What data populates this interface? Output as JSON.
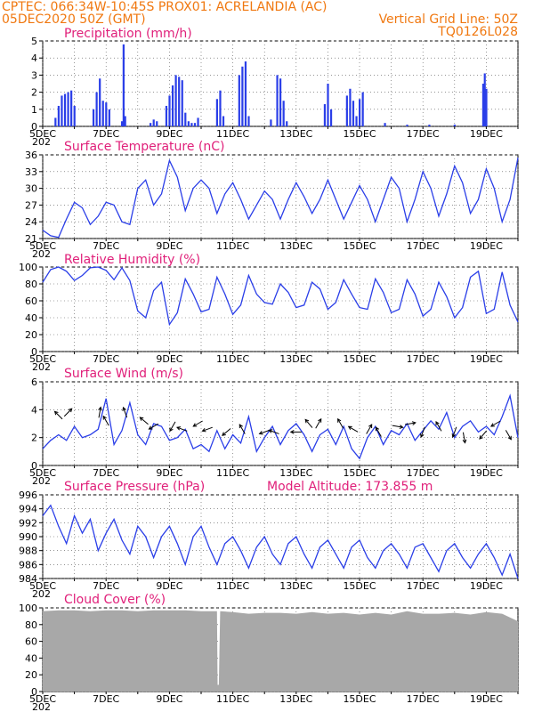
{
  "header": {
    "line1_left": "CPTEC:   066:34W-10:45S   PROX01: ACRELANDIA (AC)",
    "line2_left": "05DEC2020 50Z (GMT)",
    "line2_right": "Vertical Grid Line: 50Z",
    "line3_right": "TQ0126L028",
    "model_altitude": "Model Altitude: 173.855  m"
  },
  "colors": {
    "header": "#f07810",
    "title": "#e0207a",
    "series": "#2a3ee8",
    "cloud": "#a8a8a8",
    "grid": "#000000"
  },
  "x_axis": {
    "day_start": 5,
    "day_end": 20,
    "labels": [
      "5DEC",
      "7DEC",
      "9DEC",
      "11DEC",
      "13DEC",
      "15DEC",
      "17DEC",
      "19DEC"
    ],
    "label_days": [
      5,
      7,
      9,
      11,
      13,
      15,
      17,
      19
    ],
    "year_stub": "202"
  },
  "chart_data": [
    {
      "type": "bar",
      "title": "Precipitation  (mm/h)",
      "ylim": [
        0,
        5
      ],
      "yticks": [
        0,
        1,
        2,
        3,
        4,
        5
      ],
      "x": [
        5.4,
        5.5,
        5.6,
        5.7,
        5.8,
        5.9,
        6.0,
        6.6,
        6.7,
        6.8,
        6.9,
        7.0,
        7.1,
        7.5,
        7.55,
        7.6,
        8.4,
        8.5,
        8.6,
        8.9,
        9.0,
        9.1,
        9.2,
        9.3,
        9.4,
        9.5,
        9.6,
        9.7,
        9.8,
        9.9,
        10.5,
        10.6,
        10.7,
        11.2,
        11.3,
        11.4,
        11.5,
        12.2,
        12.4,
        12.5,
        12.6,
        12.7,
        13.9,
        14.0,
        14.1,
        14.6,
        14.7,
        14.8,
        14.9,
        15.0,
        15.1,
        15.8,
        16.5,
        17.2,
        18.0,
        18.9,
        18.95,
        19.0
      ],
      "values": [
        0.5,
        1.2,
        1.8,
        1.9,
        2.0,
        2.1,
        1.2,
        1.0,
        2.0,
        2.8,
        1.5,
        1.4,
        1.0,
        0.3,
        4.8,
        0.6,
        0.2,
        0.4,
        0.3,
        1.2,
        1.8,
        2.4,
        3.0,
        2.9,
        2.7,
        0.8,
        0.3,
        0.2,
        0.2,
        0.5,
        1.6,
        2.1,
        0.6,
        3.0,
        3.5,
        3.8,
        0.6,
        0.4,
        3.0,
        2.8,
        1.5,
        0.3,
        1.3,
        2.5,
        1.0,
        1.8,
        2.2,
        1.5,
        0.6,
        1.6,
        2.0,
        0.2,
        0.1,
        0.1,
        0.1,
        2.5,
        3.1,
        2.2
      ]
    },
    {
      "type": "line",
      "title": "Surface Temperature (nC)",
      "ylim": [
        21,
        36
      ],
      "yticks": [
        21,
        24,
        27,
        30,
        33,
        36
      ],
      "x": [
        5.0,
        5.25,
        5.5,
        5.75,
        6.0,
        6.25,
        6.5,
        6.75,
        7.0,
        7.25,
        7.5,
        7.75,
        8.0,
        8.25,
        8.5,
        8.75,
        9.0,
        9.25,
        9.5,
        9.75,
        10.0,
        10.25,
        10.5,
        10.75,
        11.0,
        11.25,
        11.5,
        11.75,
        12.0,
        12.25,
        12.5,
        12.75,
        13.0,
        13.25,
        13.5,
        13.75,
        14.0,
        14.25,
        14.5,
        14.75,
        15.0,
        15.25,
        15.5,
        15.75,
        16.0,
        16.25,
        16.5,
        16.75,
        17.0,
        17.25,
        17.5,
        17.75,
        18.0,
        18.25,
        18.5,
        18.75,
        19.0,
        19.25,
        19.5,
        19.75,
        20.0
      ],
      "values": [
        22.5,
        21.5,
        21.2,
        24.5,
        27.5,
        26.5,
        23.5,
        25.0,
        27.5,
        27.0,
        24.0,
        23.5,
        30.0,
        31.5,
        27.0,
        29.0,
        35.0,
        32.0,
        26.0,
        30.0,
        31.5,
        30.0,
        25.5,
        29.0,
        31.0,
        28.0,
        24.5,
        27.0,
        29.5,
        28.0,
        24.5,
        28.0,
        31.0,
        28.5,
        25.5,
        28.0,
        31.5,
        28.0,
        24.5,
        27.5,
        30.5,
        28.0,
        24.0,
        28.0,
        32.0,
        30.0,
        24.0,
        28.0,
        33.0,
        30.0,
        25.0,
        29.0,
        34.0,
        31.0,
        25.5,
        28.0,
        33.5,
        30.0,
        24.0,
        28.0,
        35.5
      ]
    },
    {
      "type": "line",
      "title": "Relative Humidity  (%)",
      "ylim": [
        0,
        100
      ],
      "yticks": [
        0,
        20,
        40,
        60,
        80,
        100
      ],
      "x": [
        5.0,
        5.25,
        5.5,
        5.75,
        6.0,
        6.25,
        6.5,
        6.75,
        7.0,
        7.25,
        7.5,
        7.75,
        8.0,
        8.25,
        8.5,
        8.75,
        9.0,
        9.25,
        9.5,
        9.75,
        10.0,
        10.25,
        10.5,
        10.75,
        11.0,
        11.25,
        11.5,
        11.75,
        12.0,
        12.25,
        12.5,
        12.75,
        13.0,
        13.25,
        13.5,
        13.75,
        14.0,
        14.25,
        14.5,
        14.75,
        15.0,
        15.25,
        15.5,
        15.75,
        16.0,
        16.25,
        16.5,
        16.75,
        17.0,
        17.25,
        17.5,
        17.75,
        18.0,
        18.25,
        18.5,
        18.75,
        19.0,
        19.25,
        19.5,
        19.75,
        20.0
      ],
      "values": [
        82,
        97,
        100,
        95,
        84,
        90,
        99,
        100,
        96,
        85,
        99,
        84,
        48,
        40,
        72,
        82,
        32,
        46,
        86,
        68,
        47,
        50,
        88,
        68,
        44,
        55,
        90,
        68,
        58,
        56,
        80,
        70,
        52,
        55,
        82,
        74,
        50,
        58,
        85,
        68,
        52,
        50,
        86,
        70,
        46,
        50,
        85,
        68,
        42,
        50,
        82,
        65,
        40,
        52,
        88,
        95,
        45,
        50,
        94,
        55,
        35
      ]
    },
    {
      "type": "line",
      "title": "Surface Wind  (m/s)",
      "ylim": [
        0,
        6
      ],
      "yticks": [
        0,
        2,
        4,
        6
      ],
      "x": [
        5.0,
        5.25,
        5.5,
        5.75,
        6.0,
        6.25,
        6.5,
        6.75,
        7.0,
        7.25,
        7.5,
        7.75,
        8.0,
        8.25,
        8.5,
        8.75,
        9.0,
        9.25,
        9.5,
        9.75,
        10.0,
        10.25,
        10.5,
        10.75,
        11.0,
        11.25,
        11.5,
        11.75,
        12.0,
        12.25,
        12.5,
        12.75,
        13.0,
        13.25,
        13.5,
        13.75,
        14.0,
        14.25,
        14.5,
        14.75,
        15.0,
        15.25,
        15.5,
        15.75,
        16.0,
        16.25,
        16.5,
        16.75,
        17.0,
        17.25,
        17.5,
        17.75,
        18.0,
        18.25,
        18.5,
        18.75,
        19.0,
        19.25,
        19.5,
        19.75,
        20.0
      ],
      "values": [
        1.2,
        1.8,
        2.2,
        1.8,
        2.8,
        2.0,
        2.2,
        2.6,
        4.8,
        1.5,
        2.5,
        4.5,
        2.2,
        1.5,
        3.0,
        2.8,
        1.8,
        2.0,
        2.6,
        1.2,
        1.5,
        1.0,
        2.5,
        1.2,
        2.2,
        1.6,
        3.5,
        1.0,
        2.0,
        2.8,
        1.5,
        2.5,
        3.0,
        2.2,
        1.0,
        2.2,
        2.6,
        1.5,
        2.8,
        1.2,
        0.5,
        2.0,
        2.8,
        1.5,
        2.5,
        2.2,
        3.0,
        1.8,
        2.5,
        3.2,
        2.6,
        3.8,
        2.0,
        2.8,
        3.2,
        2.4,
        2.8,
        2.2,
        3.5,
        5.0,
        2.0
      ],
      "arrows": [
        [
          5.5,
          3.6,
          135
        ],
        [
          5.8,
          3.8,
          45
        ],
        [
          6.8,
          3.8,
          80
        ],
        [
          7.0,
          3.2,
          120
        ],
        [
          7.6,
          3.8,
          110
        ],
        [
          8.2,
          3.2,
          140
        ],
        [
          8.5,
          2.8,
          210
        ],
        [
          9.1,
          2.8,
          240
        ],
        [
          9.4,
          2.6,
          160
        ],
        [
          9.9,
          3.0,
          210
        ],
        [
          10.2,
          2.6,
          200
        ],
        [
          10.8,
          2.4,
          220
        ],
        [
          11.3,
          2.6,
          120
        ],
        [
          12.0,
          2.4,
          200
        ],
        [
          12.3,
          2.4,
          160
        ],
        [
          13.0,
          2.4,
          180
        ],
        [
          13.4,
          3.0,
          130
        ],
        [
          13.7,
          3.0,
          60
        ],
        [
          14.4,
          3.0,
          120
        ],
        [
          14.8,
          2.6,
          150
        ],
        [
          15.3,
          2.6,
          60
        ],
        [
          15.6,
          2.4,
          120
        ],
        [
          16.2,
          2.8,
          350
        ],
        [
          16.6,
          3.0,
          10
        ],
        [
          17.0,
          2.4,
          250
        ],
        [
          17.5,
          2.8,
          120
        ],
        [
          18.0,
          2.4,
          250
        ],
        [
          18.3,
          2.0,
          280
        ],
        [
          18.9,
          2.2,
          230
        ],
        [
          19.3,
          3.0,
          210
        ],
        [
          19.7,
          2.2,
          300
        ]
      ]
    },
    {
      "type": "line",
      "title": "Surface Pressure (hPa)",
      "ylim": [
        984,
        996
      ],
      "yticks": [
        984,
        986,
        988,
        990,
        992,
        994,
        996
      ],
      "x": [
        5.0,
        5.25,
        5.5,
        5.75,
        6.0,
        6.25,
        6.5,
        6.75,
        7.0,
        7.25,
        7.5,
        7.75,
        8.0,
        8.25,
        8.5,
        8.75,
        9.0,
        9.25,
        9.5,
        9.75,
        10.0,
        10.25,
        10.5,
        10.75,
        11.0,
        11.25,
        11.5,
        11.75,
        12.0,
        12.25,
        12.5,
        12.75,
        13.0,
        13.25,
        13.5,
        13.75,
        14.0,
        14.25,
        14.5,
        14.75,
        15.0,
        15.25,
        15.5,
        15.75,
        16.0,
        16.25,
        16.5,
        16.75,
        17.0,
        17.25,
        17.5,
        17.75,
        18.0,
        18.25,
        18.5,
        18.75,
        19.0,
        19.25,
        19.5,
        19.75,
        20.0
      ],
      "values": [
        993.0,
        994.5,
        991.5,
        989.0,
        993.0,
        990.5,
        992.5,
        988.0,
        990.5,
        992.5,
        989.5,
        987.5,
        991.5,
        990.0,
        987.0,
        990.0,
        991.5,
        989.0,
        986.0,
        990.0,
        991.5,
        988.5,
        986.0,
        989.0,
        990.0,
        988.0,
        985.5,
        988.5,
        990.0,
        987.5,
        986.0,
        989.0,
        990.0,
        987.5,
        985.5,
        988.5,
        989.5,
        987.5,
        985.5,
        988.5,
        989.5,
        987.0,
        985.5,
        988.0,
        989.0,
        987.5,
        985.5,
        988.5,
        989.0,
        987.0,
        985.0,
        988.0,
        989.0,
        987.0,
        985.5,
        987.5,
        989.0,
        987.0,
        984.5,
        987.5,
        984.0
      ]
    },
    {
      "type": "area",
      "title": "Cloud Cover  (%)",
      "ylim": [
        0,
        100
      ],
      "yticks": [
        0,
        20,
        40,
        60,
        80,
        100
      ],
      "x": [
        5.0,
        5.5,
        6.0,
        6.5,
        7.0,
        7.5,
        8.0,
        8.5,
        9.0,
        9.5,
        10.0,
        10.5,
        10.52,
        10.56,
        10.6,
        11.0,
        11.5,
        12.0,
        12.5,
        13.0,
        13.5,
        14.0,
        14.5,
        15.0,
        15.5,
        16.0,
        16.5,
        17.0,
        17.5,
        18.0,
        18.5,
        19.0,
        19.5,
        20.0
      ],
      "values": [
        96,
        97,
        97,
        96,
        97,
        97,
        96,
        97,
        97,
        97,
        96,
        96,
        8,
        8,
        96,
        95,
        93,
        94,
        94,
        93,
        95,
        93,
        94,
        92,
        94,
        92,
        96,
        93,
        93,
        94,
        92,
        95,
        93,
        84
      ]
    }
  ]
}
